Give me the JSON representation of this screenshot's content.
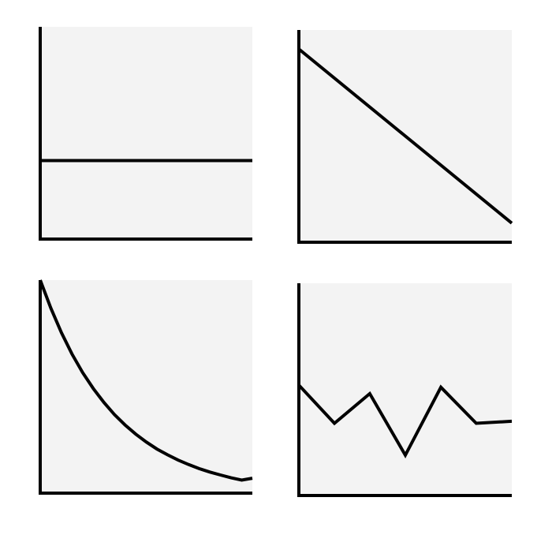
{
  "chart_data": [
    {
      "type": "line",
      "title": "",
      "xlabel": "",
      "ylabel": "",
      "grid": false,
      "xlim": [
        0,
        10
      ],
      "ylim": [
        0,
        10
      ],
      "x": [
        0,
        10
      ],
      "series": [
        {
          "values": [
            3.7,
            3.7
          ]
        }
      ],
      "colors": {
        "background": "#f3f3f3",
        "line": "#000000",
        "axis": "#000000"
      }
    },
    {
      "type": "line",
      "title": "",
      "xlabel": "",
      "ylabel": "",
      "grid": false,
      "xlim": [
        0,
        10
      ],
      "ylim": [
        0,
        10
      ],
      "x": [
        0,
        10
      ],
      "series": [
        {
          "values": [
            9.1,
            0.9
          ]
        }
      ],
      "colors": {
        "background": "#f3f3f3",
        "line": "#000000",
        "axis": "#000000"
      }
    },
    {
      "type": "line",
      "title": "",
      "xlabel": "",
      "ylabel": "",
      "grid": false,
      "xlim": [
        0,
        10
      ],
      "ylim": [
        0,
        10
      ],
      "x": [
        0,
        0.5,
        1,
        1.5,
        2,
        2.5,
        3,
        3.5,
        4,
        4.5,
        5,
        5.5,
        6,
        6.5,
        7,
        7.5,
        8,
        8.5,
        9,
        9.5,
        10
      ],
      "series": [
        {
          "values": [
            10,
            8.68,
            7.53,
            6.53,
            5.66,
            4.91,
            4.26,
            3.69,
            3.2,
            2.77,
            2.4,
            2.07,
            1.8,
            1.55,
            1.34,
            1.15,
            0.99,
            0.85,
            0.72,
            0.61,
            0.7
          ]
        }
      ],
      "colors": {
        "background": "#f3f3f3",
        "line": "#000000",
        "axis": "#000000"
      }
    },
    {
      "type": "line",
      "title": "",
      "xlabel": "",
      "ylabel": "",
      "grid": false,
      "xlim": [
        0,
        10
      ],
      "ylim": [
        0,
        10
      ],
      "x": [
        0,
        1.67,
        3.33,
        5,
        6.67,
        8.33,
        10
      ],
      "series": [
        {
          "values": [
            5.2,
            3.4,
            4.8,
            1.9,
            5.1,
            3.4,
            3.5
          ]
        }
      ],
      "colors": {
        "background": "#f3f3f3",
        "line": "#000000",
        "axis": "#000000"
      }
    }
  ]
}
